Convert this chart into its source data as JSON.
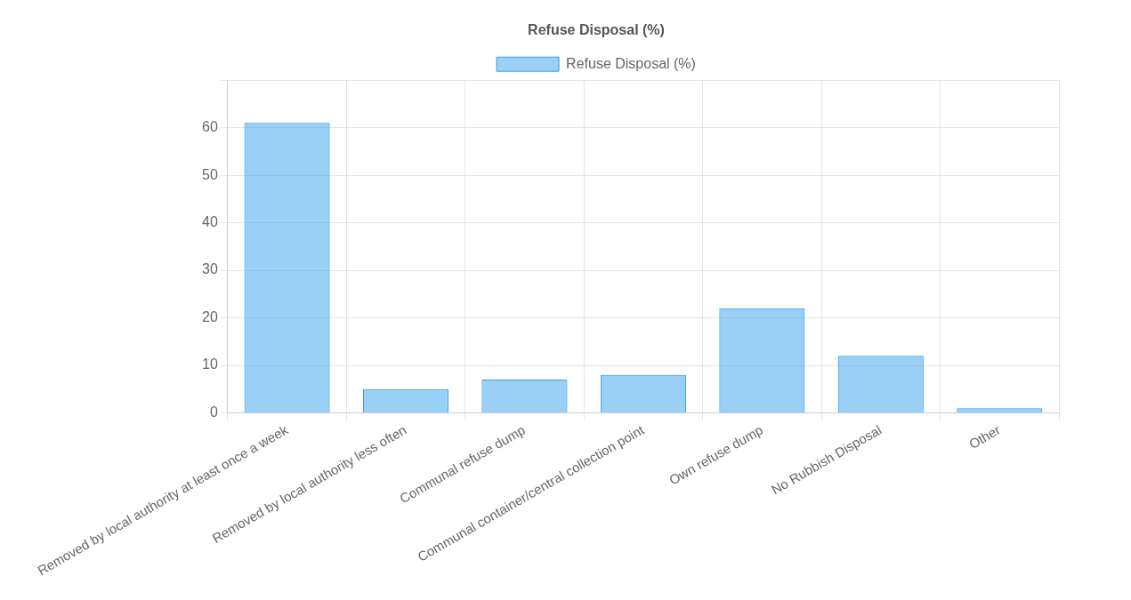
{
  "chart_data": {
    "type": "bar",
    "title": "Refuse Disposal (%)",
    "categories": [
      "Removed by local authority at least once a week",
      "Removed by local authority less often",
      "Communal refuse dump",
      "Communal container/central collection point",
      "Own refuse dump",
      "No Rubbish Disposal",
      "Other"
    ],
    "series": [
      {
        "name": "Refuse Disposal (%)",
        "color": "#36a2eb",
        "values": [
          61,
          5,
          7,
          8,
          22,
          12,
          1
        ]
      }
    ],
    "ylim": [
      0,
      70
    ],
    "yticks": [
      0,
      10,
      20,
      30,
      40,
      50,
      60,
      {
        "value": 70,
        "label": null
      }
    ],
    "grid": true,
    "legend": "top"
  }
}
